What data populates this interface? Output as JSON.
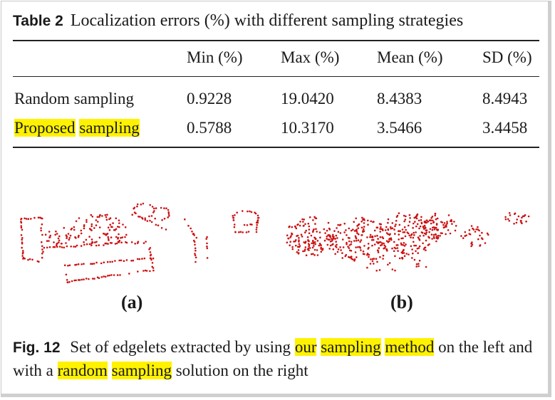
{
  "table": {
    "label": "Table 2",
    "title": "Localization errors (%) with different sampling strategies",
    "columns": [
      "Min (%)",
      "Max (%)",
      "Mean (%)",
      "SD (%)"
    ],
    "rows": [
      {
        "name": "Random sampling",
        "values": [
          "0.9228",
          "19.0420",
          "8.4383",
          "8.4943"
        ]
      },
      {
        "name_parts": [
          "Proposed",
          "sampling"
        ],
        "values": [
          "0.5788",
          "10.3170",
          "3.5466",
          "3.4458"
        ]
      }
    ]
  },
  "figure": {
    "panel_a_label": "(a)",
    "panel_b_label": "(b)",
    "point_color": "#cc1111",
    "label": "Fig. 12",
    "caption": {
      "t1": "Set of edgelets extracted by using",
      "h1": "our",
      "h2": "sampling",
      "h3": "method",
      "t2": "on the left and with a",
      "h4": "random",
      "h5": "sampling",
      "t3": "solution on the right"
    }
  },
  "highlight_color": "#fff200"
}
